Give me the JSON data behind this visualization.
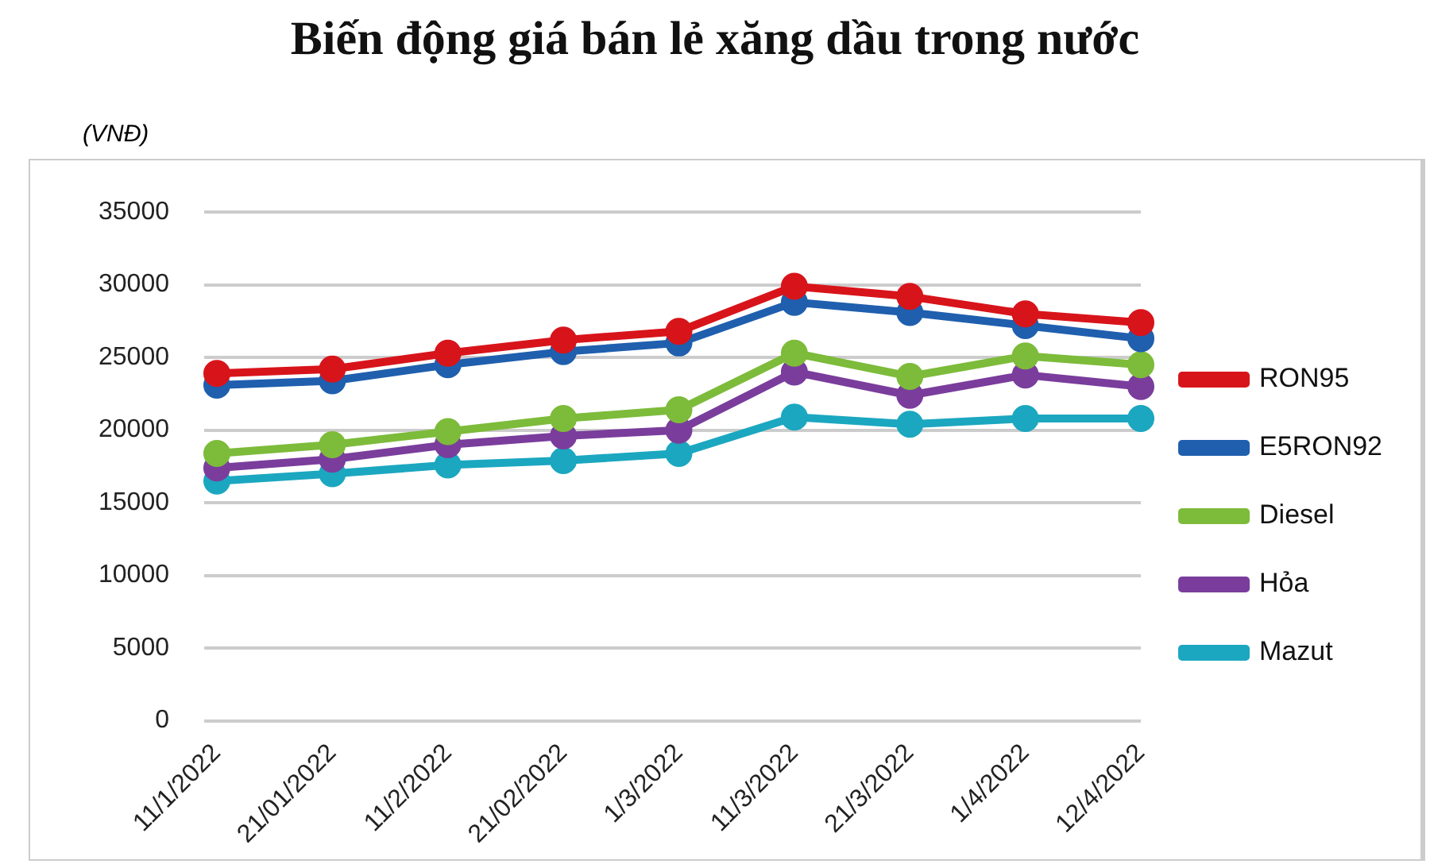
{
  "chart_data": {
    "type": "line",
    "title": "Biến động giá bán lẻ xăng dầu trong nước",
    "ylabel": "(VNĐ)",
    "categories": [
      "11/1/2022",
      "21/01/2022",
      "11/2/2022",
      "21/02/2022",
      "1/3/2022",
      "11/3/2022",
      "21/3/2022",
      "1/4/2022",
      "12/4/2022"
    ],
    "series": [
      {
        "name": "RON95",
        "color": "#d8141b",
        "values": [
          23900,
          24200,
          25300,
          26200,
          26800,
          29900,
          29200,
          28000,
          27400
        ]
      },
      {
        "name": "E5RON92",
        "color": "#1f5fae",
        "values": [
          23100,
          23400,
          24500,
          25400,
          26000,
          28800,
          28100,
          27200,
          26300
        ]
      },
      {
        "name": "Diesel",
        "color": "#7dbb3a",
        "values": [
          18400,
          19000,
          19900,
          20800,
          21400,
          25300,
          23700,
          25100,
          24500
        ]
      },
      {
        "name": "Hỏa",
        "color": "#7a3d9c",
        "values": [
          17400,
          18000,
          19000,
          19600,
          20000,
          24000,
          22400,
          23800,
          23000
        ]
      },
      {
        "name": "Mazut",
        "color": "#1ba7c0",
        "values": [
          16500,
          17000,
          17600,
          17900,
          18400,
          20900,
          20400,
          20800,
          20800
        ]
      }
    ],
    "ylim": [
      0,
      35000
    ],
    "yticks": [
      0,
      5000,
      10000,
      15000,
      20000,
      25000,
      30000,
      35000
    ],
    "grid": "y",
    "legend": "right",
    "marker": "circle",
    "line_style": "solid"
  }
}
